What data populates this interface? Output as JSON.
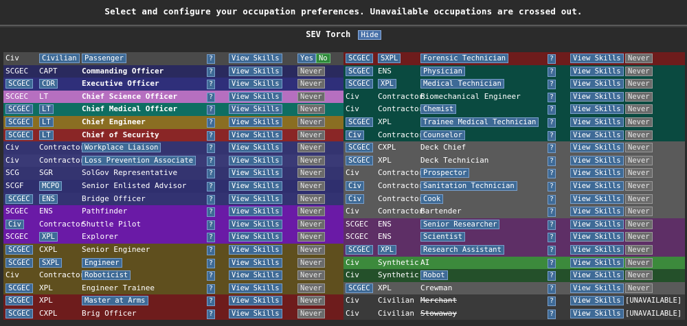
{
  "header": {
    "instructions": "Select and configure your occupation preferences. Unavailable occupations are crossed out.",
    "ship": "SEV Torch",
    "hide_label": "Hide"
  },
  "labels": {
    "help": "?",
    "view_skills": "View Skills",
    "never": "Never",
    "yes": "Yes",
    "no": "No",
    "unavailable": "[UNAVAILABLE]"
  },
  "left_rows": [
    {
      "dep": "Civ",
      "dep_btn": false,
      "rank": "Civilian",
      "rank_btn": true,
      "role": "Passenger",
      "role_btn": true,
      "bold": false,
      "color": "#4a4a4a",
      "pref": "yesno"
    },
    {
      "dep": "SCGEC",
      "dep_btn": false,
      "rank": "CAPT",
      "rank_btn": false,
      "role": "Commanding Officer",
      "role_btn": false,
      "bold": true,
      "color": "#2a2a5e",
      "pref": "never"
    },
    {
      "dep": "SCGEC",
      "dep_btn": true,
      "rank": "CDR",
      "rank_btn": true,
      "role": "Executive Officer",
      "role_btn": false,
      "bold": true,
      "color": "#2f2f7a",
      "pref": "never"
    },
    {
      "dep": "SCGEC",
      "dep_btn": false,
      "rank": "LT",
      "rank_btn": false,
      "role": "Chief Science Officer",
      "role_btn": false,
      "bold": true,
      "color": "#b66fc0",
      "pref": "never"
    },
    {
      "dep": "SCGEC",
      "dep_btn": true,
      "rank": "LT",
      "rank_btn": true,
      "role": "Chief Medical Officer",
      "role_btn": false,
      "bold": true,
      "color": "#0e6e62",
      "pref": "never"
    },
    {
      "dep": "SCGEC",
      "dep_btn": true,
      "rank": "LT",
      "rank_btn": true,
      "role": "Chief Engineer",
      "role_btn": false,
      "bold": true,
      "color": "#8a6e22",
      "pref": "never"
    },
    {
      "dep": "SCGEC",
      "dep_btn": true,
      "rank": "LT",
      "rank_btn": true,
      "role": "Chief of Security",
      "role_btn": false,
      "bold": true,
      "color": "#8a2626",
      "pref": "never"
    },
    {
      "dep": "Civ",
      "dep_btn": false,
      "rank": "Contractor",
      "rank_btn": false,
      "role": "Workplace Liaison",
      "role_btn": true,
      "bold": false,
      "color": "#343470",
      "pref": "never"
    },
    {
      "dep": "Civ",
      "dep_btn": false,
      "rank": "Contractor",
      "rank_btn": false,
      "role": "Loss Prevention Associate",
      "role_btn": true,
      "bold": false,
      "color": "#3a3a76",
      "pref": "never"
    },
    {
      "dep": "SCG",
      "dep_btn": false,
      "rank": "SGR",
      "rank_btn": false,
      "role": "SolGov Representative",
      "role_btn": false,
      "bold": false,
      "color": "#343470",
      "pref": "never"
    },
    {
      "dep": "SCGF",
      "dep_btn": false,
      "rank": "MCPO",
      "rank_btn": true,
      "role": "Senior Enlisted Advisor",
      "role_btn": false,
      "bold": false,
      "color": "#2f2f6e",
      "pref": "never"
    },
    {
      "dep": "SCGEC",
      "dep_btn": true,
      "rank": "ENS",
      "rank_btn": true,
      "role": "Bridge Officer",
      "role_btn": false,
      "bold": false,
      "color": "#333372",
      "pref": "never"
    },
    {
      "dep": "SCGEC",
      "dep_btn": false,
      "rank": "ENS",
      "rank_btn": false,
      "role": "Pathfinder",
      "role_btn": false,
      "bold": false,
      "color": "#6a1aa6",
      "pref": "never"
    },
    {
      "dep": "Civ",
      "dep_btn": true,
      "rank": "Contractor",
      "rank_btn": false,
      "role": "Shuttle Pilot",
      "role_btn": false,
      "bold": false,
      "color": "#6a1aa6",
      "pref": "never"
    },
    {
      "dep": "SCGEC",
      "dep_btn": false,
      "rank": "XPL",
      "rank_btn": true,
      "role": "Explorer",
      "role_btn": false,
      "bold": false,
      "color": "#6a1aa6",
      "pref": "never"
    },
    {
      "dep": "SCGEC",
      "dep_btn": true,
      "rank": "CXPL",
      "rank_btn": false,
      "role": "Senior Engineer",
      "role_btn": false,
      "bold": false,
      "color": "#5f4f1e",
      "pref": "never"
    },
    {
      "dep": "SCGEC",
      "dep_btn": true,
      "rank": "SXPL",
      "rank_btn": true,
      "role": "Engineer",
      "role_btn": true,
      "bold": false,
      "color": "#5f4f1e",
      "pref": "never"
    },
    {
      "dep": "Civ",
      "dep_btn": false,
      "rank": "Contractor",
      "rank_btn": false,
      "role": "Roboticist",
      "role_btn": true,
      "bold": false,
      "color": "#5f4f1e",
      "pref": "never"
    },
    {
      "dep": "SCGEC",
      "dep_btn": true,
      "rank": "XPL",
      "rank_btn": false,
      "role": "Engineer Trainee",
      "role_btn": false,
      "bold": false,
      "color": "#5f4f1e",
      "pref": "never"
    },
    {
      "dep": "SCGEC",
      "dep_btn": true,
      "rank": "XPL",
      "rank_btn": false,
      "role": "Master at Arms",
      "role_btn": true,
      "bold": false,
      "color": "#6e1c1c",
      "pref": "never"
    },
    {
      "dep": "SCGEC",
      "dep_btn": true,
      "rank": "CXPL",
      "rank_btn": false,
      "role": "Brig Officer",
      "role_btn": false,
      "bold": false,
      "color": "#6e1c1c",
      "pref": "never"
    }
  ],
  "right_rows": [
    {
      "dep": "SCGEC",
      "dep_btn": true,
      "rank": "SXPL",
      "rank_btn": true,
      "role": "Forensic Technician",
      "role_btn": true,
      "strike": false,
      "color": "#6e1c1c",
      "pref": "never"
    },
    {
      "dep": "SCGEC",
      "dep_btn": true,
      "rank": "ENS",
      "rank_btn": false,
      "role": "Physician",
      "role_btn": true,
      "strike": false,
      "color": "#0a4a40",
      "pref": "never"
    },
    {
      "dep": "SCGEC",
      "dep_btn": true,
      "rank": "XPL",
      "rank_btn": true,
      "role": "Medical Technician",
      "role_btn": true,
      "strike": false,
      "color": "#0a4a40",
      "pref": "never"
    },
    {
      "dep": "Civ",
      "dep_btn": false,
      "rank": "Contractor",
      "rank_btn": false,
      "role": "Biomechanical Engineer",
      "role_btn": false,
      "strike": false,
      "color": "#0a4a40",
      "pref": "never"
    },
    {
      "dep": "Civ",
      "dep_btn": false,
      "rank": "Contractor",
      "rank_btn": false,
      "role": "Chemist",
      "role_btn": true,
      "strike": false,
      "color": "#0a4a40",
      "pref": "never"
    },
    {
      "dep": "SCGEC",
      "dep_btn": true,
      "rank": "XPL",
      "rank_btn": false,
      "role": "Trainee Medical Technician",
      "role_btn": true,
      "strike": false,
      "color": "#0a4a40",
      "pref": "never"
    },
    {
      "dep": "Civ",
      "dep_btn": true,
      "rank": "Contractor",
      "rank_btn": false,
      "role": "Counselor",
      "role_btn": true,
      "strike": false,
      "color": "#0a4a40",
      "pref": "never"
    },
    {
      "dep": "SCGEC",
      "dep_btn": true,
      "rank": "CXPL",
      "rank_btn": false,
      "role": "Deck Chief",
      "role_btn": false,
      "strike": false,
      "color": "#5a5a5a",
      "pref": "never"
    },
    {
      "dep": "SCGEC",
      "dep_btn": true,
      "rank": "XPL",
      "rank_btn": false,
      "role": "Deck Technician",
      "role_btn": false,
      "strike": false,
      "color": "#5a5a5a",
      "pref": "never"
    },
    {
      "dep": "Civ",
      "dep_btn": false,
      "rank": "Contractor",
      "rank_btn": false,
      "role": "Prospector",
      "role_btn": true,
      "strike": false,
      "color": "#5a5a5a",
      "pref": "never"
    },
    {
      "dep": "Civ",
      "dep_btn": true,
      "rank": "Contractor",
      "rank_btn": false,
      "role": "Sanitation Technician",
      "role_btn": true,
      "strike": false,
      "color": "#5a5a5a",
      "pref": "never"
    },
    {
      "dep": "Civ",
      "dep_btn": true,
      "rank": "Contractor",
      "rank_btn": false,
      "role": "Cook",
      "role_btn": true,
      "strike": false,
      "color": "#5a5a5a",
      "pref": "never"
    },
    {
      "dep": "Civ",
      "dep_btn": false,
      "rank": "Contractor",
      "rank_btn": false,
      "role": "Bartender",
      "role_btn": false,
      "strike": false,
      "color": "#5a5a5a",
      "pref": "never"
    },
    {
      "dep": "SCGEC",
      "dep_btn": false,
      "rank": "ENS",
      "rank_btn": false,
      "role": "Senior Researcher",
      "role_btn": true,
      "strike": false,
      "color": "#5e2f66",
      "pref": "never"
    },
    {
      "dep": "SCGEC",
      "dep_btn": false,
      "rank": "ENS",
      "rank_btn": false,
      "role": "Scientist",
      "role_btn": true,
      "strike": false,
      "color": "#5e2f66",
      "pref": "never"
    },
    {
      "dep": "SCGEC",
      "dep_btn": true,
      "rank": "XPL",
      "rank_btn": true,
      "role": "Research Assistant",
      "role_btn": true,
      "strike": false,
      "color": "#5e2f66",
      "pref": "never"
    },
    {
      "dep": "Civ",
      "dep_btn": false,
      "rank": "Synthetic",
      "rank_btn": false,
      "role": "AI",
      "role_btn": false,
      "strike": false,
      "color": "#3c8a3c",
      "pref": "never"
    },
    {
      "dep": "Civ",
      "dep_btn": false,
      "rank": "Synthetic",
      "rank_btn": false,
      "role": "Robot",
      "role_btn": true,
      "strike": false,
      "color": "#24502a",
      "pref": "never"
    },
    {
      "dep": "SCGEC",
      "dep_btn": true,
      "rank": "XPL",
      "rank_btn": false,
      "role": "Crewman",
      "role_btn": false,
      "strike": false,
      "color": "#5a5a5a",
      "pref": "never"
    },
    {
      "dep": "Civ",
      "dep_btn": false,
      "rank": "Civilian",
      "rank_btn": false,
      "role": "Merchant",
      "role_btn": false,
      "strike": true,
      "color": "#3a3a3a",
      "pref": "unavailable"
    },
    {
      "dep": "Civ",
      "dep_btn": false,
      "rank": "Civilian",
      "rank_btn": false,
      "role": "Stowaway",
      "role_btn": false,
      "strike": true,
      "color": "#3a3a3a",
      "pref": "unavailable"
    }
  ]
}
